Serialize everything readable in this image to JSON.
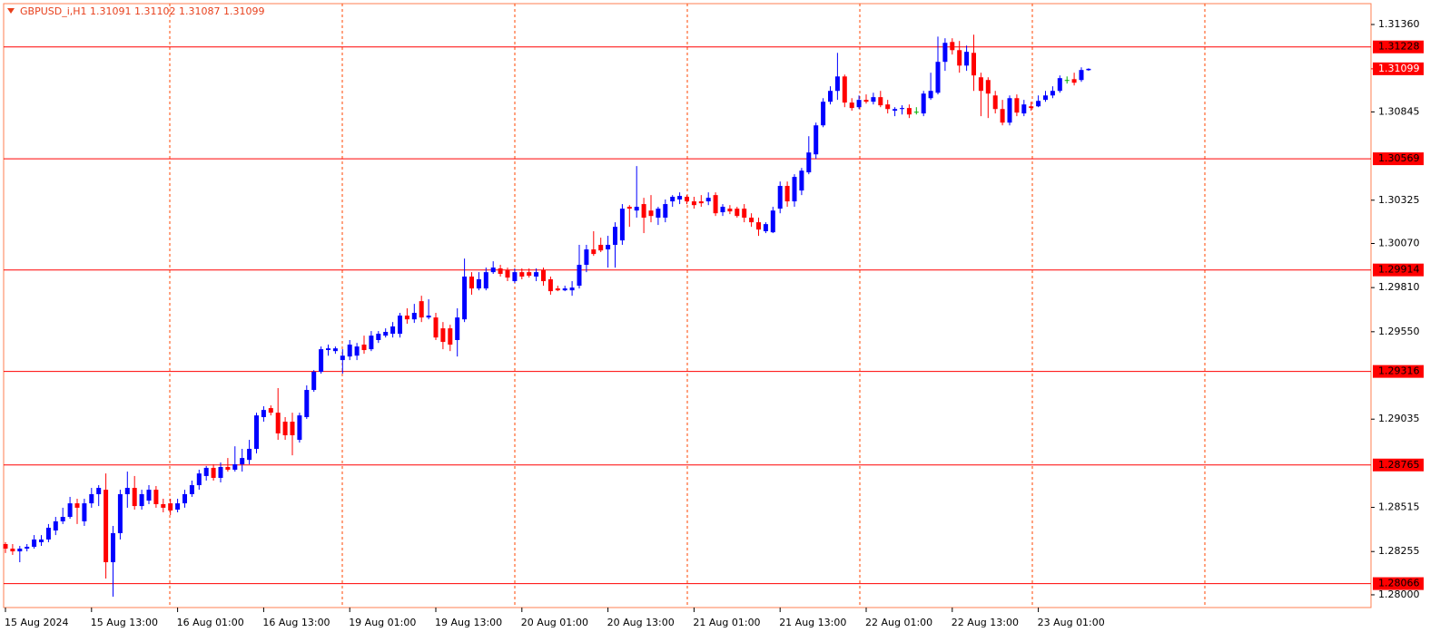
{
  "chart_data": {
    "type": "candlestick",
    "title": "GBPUSD_i,H1  1.31091 1.31102 1.31087 1.31099",
    "categories": [
      "15 Aug 2024",
      null,
      null,
      null,
      null,
      null,
      null,
      null,
      null,
      null,
      null,
      null,
      "15 Aug 13:00",
      null,
      null,
      null,
      null,
      null,
      null,
      null,
      null,
      null,
      null,
      null,
      "16 Aug 01:00",
      null,
      null,
      null,
      null,
      null,
      null,
      null,
      null,
      null,
      null,
      null,
      "16 Aug 13:00",
      null,
      null,
      null,
      null,
      null,
      null,
      null,
      null,
      null,
      null,
      null,
      "19 Aug 01:00",
      null,
      null,
      null,
      null,
      null,
      null,
      null,
      null,
      null,
      null,
      null,
      "19 Aug 13:00",
      null,
      null,
      null,
      null,
      null,
      null,
      null,
      null,
      null,
      null,
      null,
      "20 Aug 01:00",
      null,
      null,
      null,
      null,
      null,
      null,
      null,
      null,
      null,
      null,
      null,
      "20 Aug 13:00",
      null,
      null,
      null,
      null,
      null,
      null,
      null,
      null,
      null,
      null,
      null,
      "21 Aug 01:00",
      null,
      null,
      null,
      null,
      null,
      null,
      null,
      null,
      null,
      null,
      null,
      "21 Aug 13:00",
      null,
      null,
      null,
      null,
      null,
      null,
      null,
      null,
      null,
      null,
      null,
      "22 Aug 01:00",
      null,
      null,
      null,
      null,
      null,
      null,
      null,
      null,
      null,
      null,
      null,
      "22 Aug 13:00",
      null,
      null,
      null,
      null,
      null,
      null,
      null,
      null,
      null,
      null,
      null,
      "23 Aug 01:00",
      null,
      null,
      null,
      null,
      null,
      null,
      null
    ],
    "open": [
      1.28299,
      1.28272,
      1.28256,
      1.28272,
      1.28283,
      1.2831,
      1.28326,
      1.28379,
      1.28433,
      1.28459,
      1.28539,
      1.28433,
      1.28539,
      1.28593,
      1.28619,
      1.28192,
      1.28363,
      1.28593,
      1.2863,
      1.28523,
      1.28555,
      1.28619,
      1.28534,
      1.28539,
      1.28502,
      1.28539,
      1.28593,
      1.28646,
      1.287,
      1.28748,
      1.28689,
      1.28753,
      1.28737,
      1.28769,
      1.28795,
      1.2886,
      1.29047,
      1.291,
      1.29073,
      1.2902,
      1.2902,
      1.28913,
      1.29047,
      1.29207,
      1.29314,
      1.29442,
      1.29436,
      1.29383,
      1.29404,
      1.29409,
      1.29474,
      1.29447,
      1.29501,
      1.29527,
      1.29538,
      1.29538,
      1.29645,
      1.29623,
      1.2973,
      1.29634,
      1.29634,
      1.2957,
      1.2957,
      1.29501,
      1.29623,
      1.29875,
      1.29805,
      1.29805,
      1.29901,
      1.29923,
      1.29912,
      1.29848,
      1.29901,
      1.29901,
      1.29875,
      1.29912,
      1.29859,
      1.29805,
      1.29794,
      1.29794,
      1.29821,
      1.29944,
      1.30035,
      1.30062,
      1.30035,
      1.30062,
      1.30088,
      1.30286,
      1.30264,
      1.30302,
      1.30264,
      1.30222,
      1.30222,
      1.30318,
      1.30329,
      1.30345,
      1.30318,
      1.30318,
      1.30318,
      1.30355,
      1.30254,
      1.30275,
      1.30275,
      1.30275,
      1.30222,
      1.30195,
      1.30142,
      1.30136,
      1.30275,
      1.30409,
      1.30318,
      1.30382,
      1.30489,
      1.30595,
      1.30766,
      1.30905,
      1.30969,
      1.31054,
      1.309,
      1.30873,
      1.30916,
      1.30905,
      1.30932,
      1.30889,
      1.30852,
      1.30862,
      1.30868,
      1.30846,
      1.30836,
      1.30926,
      1.30958,
      1.3114,
      1.31257,
      1.31209,
      1.31118,
      1.31193,
      1.31049,
      1.31033,
      1.30942,
      1.30862,
      1.30782,
      1.30926,
      1.30836,
      1.30878,
      1.30878,
      1.30916,
      1.30942,
      1.30969,
      1.31033,
      1.31038,
      1.31033,
      1.31091
    ],
    "high": [
      1.2831,
      1.28299,
      1.28288,
      1.28299,
      1.28352,
      1.28352,
      1.28417,
      1.28459,
      1.28513,
      1.28577,
      1.28566,
      1.28566,
      1.2863,
      1.28646,
      1.28715,
      1.28406,
      1.28619,
      1.28726,
      1.287,
      1.28619,
      1.28646,
      1.28641,
      1.28566,
      1.28566,
      1.28566,
      1.28619,
      1.28673,
      1.28737,
      1.28759,
      1.28769,
      1.2878,
      1.28806,
      1.28875,
      1.2886,
      1.28913,
      1.29073,
      1.29111,
      1.29116,
      1.29218,
      1.29047,
      1.29073,
      1.29073,
      1.29234,
      1.29324,
      1.29463,
      1.29474,
      1.29463,
      1.29447,
      1.29501,
      1.29484,
      1.29527,
      1.29554,
      1.29554,
      1.2957,
      1.29607,
      1.29661,
      1.29688,
      1.29714,
      1.29762,
      1.29741,
      1.29661,
      1.29607,
      1.29591,
      1.29688,
      1.29981,
      1.29901,
      1.29901,
      1.29928,
      1.29965,
      1.29944,
      1.29928,
      1.29923,
      1.29923,
      1.29923,
      1.29923,
      1.29928,
      1.29875,
      1.29821,
      1.29821,
      1.29848,
      1.30062,
      1.30062,
      1.30142,
      1.30104,
      1.30115,
      1.30195,
      1.30302,
      1.30296,
      1.30526,
      1.30339,
      1.30355,
      1.30286,
      1.30329,
      1.30355,
      1.30371,
      1.30355,
      1.30345,
      1.30355,
      1.30371,
      1.30371,
      1.30302,
      1.30296,
      1.30286,
      1.30302,
      1.30248,
      1.30222,
      1.30195,
      1.30286,
      1.30435,
      1.30435,
      1.30478,
      1.30515,
      1.30702,
      1.30782,
      1.30926,
      1.30996,
      1.31193,
      1.31065,
      1.30926,
      1.30942,
      1.30948,
      1.30958,
      1.30969,
      1.30916,
      1.30873,
      1.30884,
      1.30889,
      1.30873,
      1.30969,
      1.31076,
      1.31289,
      1.31279,
      1.31279,
      1.31263,
      1.31236,
      1.313,
      1.31076,
      1.31049,
      1.30969,
      1.30916,
      1.30942,
      1.30948,
      1.30916,
      1.30905,
      1.30942,
      1.30969,
      1.30996,
      1.3106,
      1.31054,
      1.31076,
      1.31108,
      1.31102
    ],
    "low": [
      1.28246,
      1.28235,
      1.28192,
      1.28256,
      1.28272,
      1.28288,
      1.2831,
      1.28352,
      1.28417,
      1.28448,
      1.28417,
      1.28406,
      1.28513,
      1.28523,
      1.28096,
      1.27989,
      1.28326,
      1.28513,
      1.28502,
      1.28502,
      1.28534,
      1.28513,
      1.28486,
      1.2847,
      1.28486,
      1.28513,
      1.28577,
      1.28619,
      1.28673,
      1.28673,
      1.28662,
      1.28726,
      1.28726,
      1.28726,
      1.28769,
      1.28833,
      1.2902,
      1.29057,
      1.28913,
      1.28913,
      1.28822,
      1.28897,
      1.29036,
      1.29196,
      1.29303,
      1.29409,
      1.2942,
      1.29303,
      1.29383,
      1.29383,
      1.2942,
      1.29436,
      1.29484,
      1.29516,
      1.29516,
      1.29516,
      1.29597,
      1.29602,
      1.29607,
      1.29623,
      1.29501,
      1.29447,
      1.29436,
      1.29404,
      1.29607,
      1.29768,
      1.29794,
      1.29794,
      1.29891,
      1.29875,
      1.29848,
      1.29837,
      1.29859,
      1.29869,
      1.29848,
      1.29821,
      1.29768,
      1.29789,
      1.29789,
      1.29762,
      1.29805,
      1.29901,
      1.29997,
      1.30019,
      1.29928,
      1.29928,
      1.30062,
      1.30168,
      1.30222,
      1.30131,
      1.30195,
      1.30179,
      1.30195,
      1.30286,
      1.30302,
      1.30302,
      1.30275,
      1.30286,
      1.30296,
      1.30232,
      1.30232,
      1.30243,
      1.30222,
      1.30195,
      1.30168,
      1.30115,
      1.30131,
      1.30131,
      1.30248,
      1.30286,
      1.30286,
      1.30355,
      1.30478,
      1.30569,
      1.30755,
      1.30889,
      1.30916,
      1.30873,
      1.30852,
      1.30862,
      1.30894,
      1.30889,
      1.30873,
      1.30836,
      1.3082,
      1.3083,
      1.30809,
      1.3083,
      1.3082,
      1.30916,
      1.30948,
      1.31087,
      1.31183,
      1.31076,
      1.31087,
      1.30969,
      1.3082,
      1.30809,
      1.30836,
      1.30766,
      1.30766,
      1.3082,
      1.3082,
      1.30852,
      1.30873,
      1.30905,
      1.30926,
      1.30958,
      1.31012,
      1.31001,
      1.31022,
      1.31087
    ],
    "close": [
      1.28272,
      1.28256,
      1.28272,
      1.28283,
      1.28326,
      1.28326,
      1.28395,
      1.28433,
      1.28459,
      1.28539,
      1.28513,
      1.28539,
      1.28593,
      1.2863,
      1.28192,
      1.28363,
      1.28593,
      1.2863,
      1.28523,
      1.28593,
      1.28619,
      1.28534,
      1.28513,
      1.28497,
      1.28539,
      1.28593,
      1.28646,
      1.28715,
      1.28748,
      1.28689,
      1.28753,
      1.28737,
      1.28769,
      1.28806,
      1.2886,
      1.29057,
      1.29089,
      1.29073,
      1.28951,
      1.2894,
      1.2894,
      1.29057,
      1.29207,
      1.29314,
      1.29447,
      1.29452,
      1.29452,
      1.29409,
      1.29474,
      1.29463,
      1.29442,
      1.29527,
      1.29538,
      1.29549,
      1.29581,
      1.29645,
      1.29623,
      1.29661,
      1.29634,
      1.29645,
      1.29516,
      1.2949,
      1.29474,
      1.29634,
      1.29875,
      1.29805,
      1.29859,
      1.29901,
      1.29928,
      1.29891,
      1.29869,
      1.29901,
      1.29875,
      1.2988,
      1.29901,
      1.29848,
      1.29789,
      1.29794,
      1.29805,
      1.2981,
      1.29944,
      1.30035,
      1.30008,
      1.30029,
      1.30062,
      1.30168,
      1.30275,
      1.30275,
      1.30286,
      1.30222,
      1.30232,
      1.30275,
      1.30302,
      1.30345,
      1.3035,
      1.30318,
      1.30296,
      1.30307,
      1.30339,
      1.30248,
      1.30286,
      1.30259,
      1.30232,
      1.30222,
      1.30195,
      1.30152,
      1.30184,
      1.30264,
      1.30409,
      1.30318,
      1.30462,
      1.30499,
      1.30606,
      1.30766,
      1.30905,
      1.30969,
      1.31054,
      1.309,
      1.30868,
      1.30916,
      1.30905,
      1.30932,
      1.30884,
      1.30862,
      1.30862,
      1.30868,
      1.3083,
      1.30846,
      1.30953,
      1.30969,
      1.3114,
      1.31252,
      1.31209,
      1.31118,
      1.31199,
      1.3106,
      1.30969,
      1.30953,
      1.30862,
      1.30782,
      1.30926,
      1.30841,
      1.30889,
      1.30868,
      1.3091,
      1.30942,
      1.30969,
      1.31044,
      1.31033,
      1.31017,
      1.31092,
      1.31099
    ],
    "up_color": "#0000ff",
    "down_color": "#ff0000",
    "doji_color": "#00b000",
    "ylim": [
      1.27925,
      1.31483
    ],
    "yticks": [
      {
        "value": 1.3136,
        "label": "1.31360"
      },
      1.30845,
      1.30325,
      {
        "value": 1.3007,
        "label": "1.30070"
      },
      {
        "value": 1.2981,
        "label": "1.29810"
      },
      {
        "value": 1.2955,
        "label": "1.29550"
      },
      1.29035,
      1.28515,
      1.28255,
      {
        "value": 1.28,
        "label": "1.28000"
      }
    ],
    "levels": [
      1.31228,
      1.30569,
      1.29914,
      1.29316,
      1.28765,
      1.28066
    ],
    "level_color": "#ff0000",
    "last_price": 1.31099,
    "grid": true
  }
}
